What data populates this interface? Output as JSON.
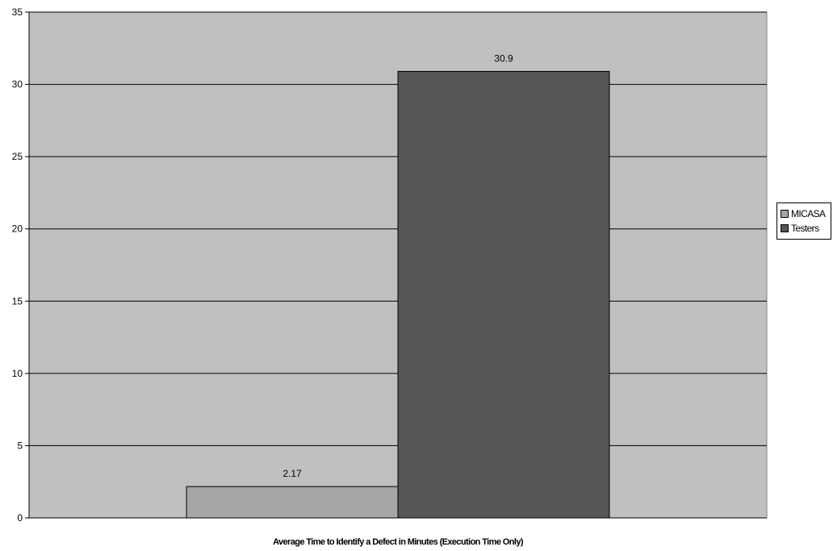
{
  "chart_data": {
    "type": "bar",
    "title": "",
    "xlabel": "Average Time to Identify a Defect in Minutes (Execution Time Only)",
    "ylabel": "",
    "ylim": [
      0,
      35
    ],
    "yticks": [
      "0",
      "5",
      "10",
      "15",
      "20",
      "25",
      "30",
      "35"
    ],
    "grid": true,
    "legend_position": "right",
    "plot_background": "#c0c0c0",
    "series": [
      {
        "name": "MICASA",
        "values": [
          2.17
        ],
        "label": "2.17",
        "color": "#a6a6a6"
      },
      {
        "name": "Testers",
        "values": [
          30.9
        ],
        "label": "30.9",
        "color": "#565656"
      }
    ]
  }
}
